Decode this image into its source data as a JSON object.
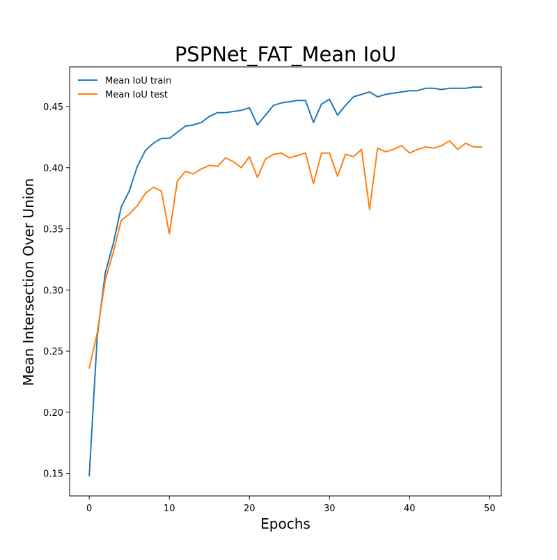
{
  "chart_data": {
    "type": "line",
    "title": "PSPNet_FAT_Mean IoU",
    "xlabel": "Epochs",
    "ylabel": "Mean Intersection Over Union",
    "xlim": [
      -2.45,
      51.45
    ],
    "ylim": [
      0.1315,
      0.4825
    ],
    "xticks": [
      0,
      10,
      20,
      30,
      40,
      50
    ],
    "xtick_labels": [
      "0",
      "10",
      "20",
      "30",
      "40",
      "50"
    ],
    "yticks": [
      0.15,
      0.2,
      0.25,
      0.3,
      0.35,
      0.4,
      0.45
    ],
    "ytick_labels": [
      "0.15",
      "0.20",
      "0.25",
      "0.30",
      "0.35",
      "0.40",
      "0.45"
    ],
    "grid": false,
    "legend_position": "upper-left",
    "x": [
      0,
      1,
      2,
      3,
      4,
      5,
      6,
      7,
      8,
      9,
      10,
      11,
      12,
      13,
      14,
      15,
      16,
      17,
      18,
      19,
      20,
      21,
      22,
      23,
      24,
      25,
      26,
      27,
      28,
      29,
      30,
      31,
      32,
      33,
      34,
      35,
      36,
      37,
      38,
      39,
      40,
      41,
      42,
      43,
      44,
      45,
      46,
      47,
      48,
      49
    ],
    "series": [
      {
        "name": "Mean IoU train",
        "color": "#1f77b4",
        "values": [
          0.148,
          0.262,
          0.314,
          0.338,
          0.368,
          0.381,
          0.401,
          0.414,
          0.42,
          0.424,
          0.424,
          0.429,
          0.434,
          0.435,
          0.437,
          0.442,
          0.445,
          0.445,
          0.446,
          0.447,
          0.449,
          0.435,
          0.443,
          0.451,
          0.453,
          0.454,
          0.455,
          0.455,
          0.437,
          0.452,
          0.456,
          0.443,
          0.451,
          0.458,
          0.46,
          0.462,
          0.458,
          0.46,
          0.461,
          0.462,
          0.463,
          0.463,
          0.465,
          0.465,
          0.464,
          0.465,
          0.465,
          0.465,
          0.466,
          0.466
        ]
      },
      {
        "name": "Mean IoU test",
        "color": "#ff7f0e",
        "values": [
          0.236,
          0.265,
          0.308,
          0.331,
          0.357,
          0.362,
          0.369,
          0.379,
          0.384,
          0.381,
          0.346,
          0.389,
          0.397,
          0.395,
          0.399,
          0.402,
          0.401,
          0.408,
          0.405,
          0.4,
          0.409,
          0.392,
          0.407,
          0.411,
          0.412,
          0.408,
          0.41,
          0.412,
          0.387,
          0.412,
          0.412,
          0.393,
          0.411,
          0.409,
          0.415,
          0.366,
          0.416,
          0.413,
          0.415,
          0.418,
          0.412,
          0.415,
          0.417,
          0.416,
          0.418,
          0.422,
          0.415,
          0.42,
          0.417,
          0.417
        ]
      }
    ]
  }
}
